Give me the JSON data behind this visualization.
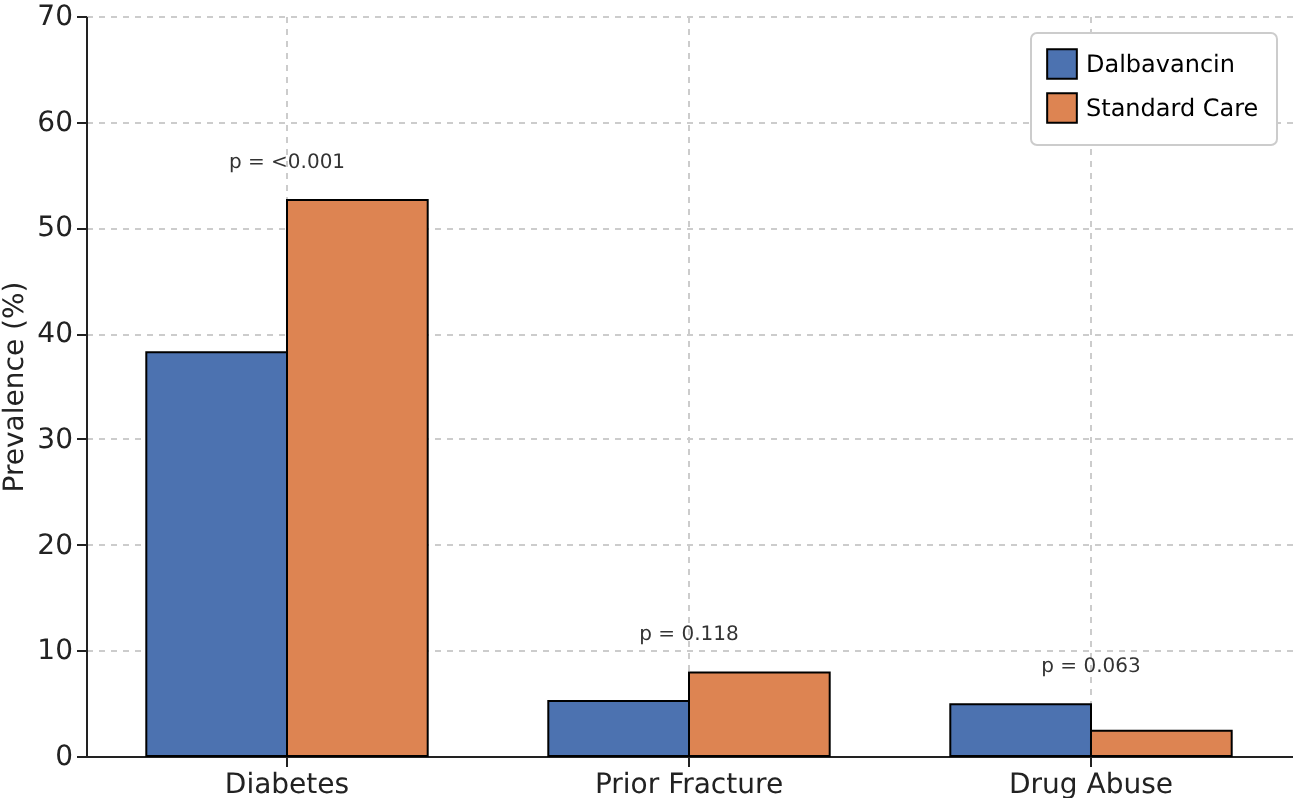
{
  "chart_data": {
    "type": "bar",
    "ylabel": "Prevalence (%)",
    "categories": [
      "Diabetes",
      "Prior Fracture",
      "Drug Abuse"
    ],
    "series": [
      {
        "name": "Dalbavancin",
        "color": "#4c72b0",
        "values": [
          38.2,
          5.2,
          4.9
        ]
      },
      {
        "name": "Standard Care",
        "color": "#dd8452",
        "values": [
          52.6,
          7.9,
          2.4
        ]
      }
    ],
    "annotations": [
      "p = <0.001",
      "p = 0.118",
      "p = 0.063"
    ],
    "ylim": [
      0,
      70
    ],
    "yticks": [
      0,
      10,
      20,
      30,
      40,
      50,
      60,
      70
    ],
    "grid": true,
    "legend": "top right"
  }
}
